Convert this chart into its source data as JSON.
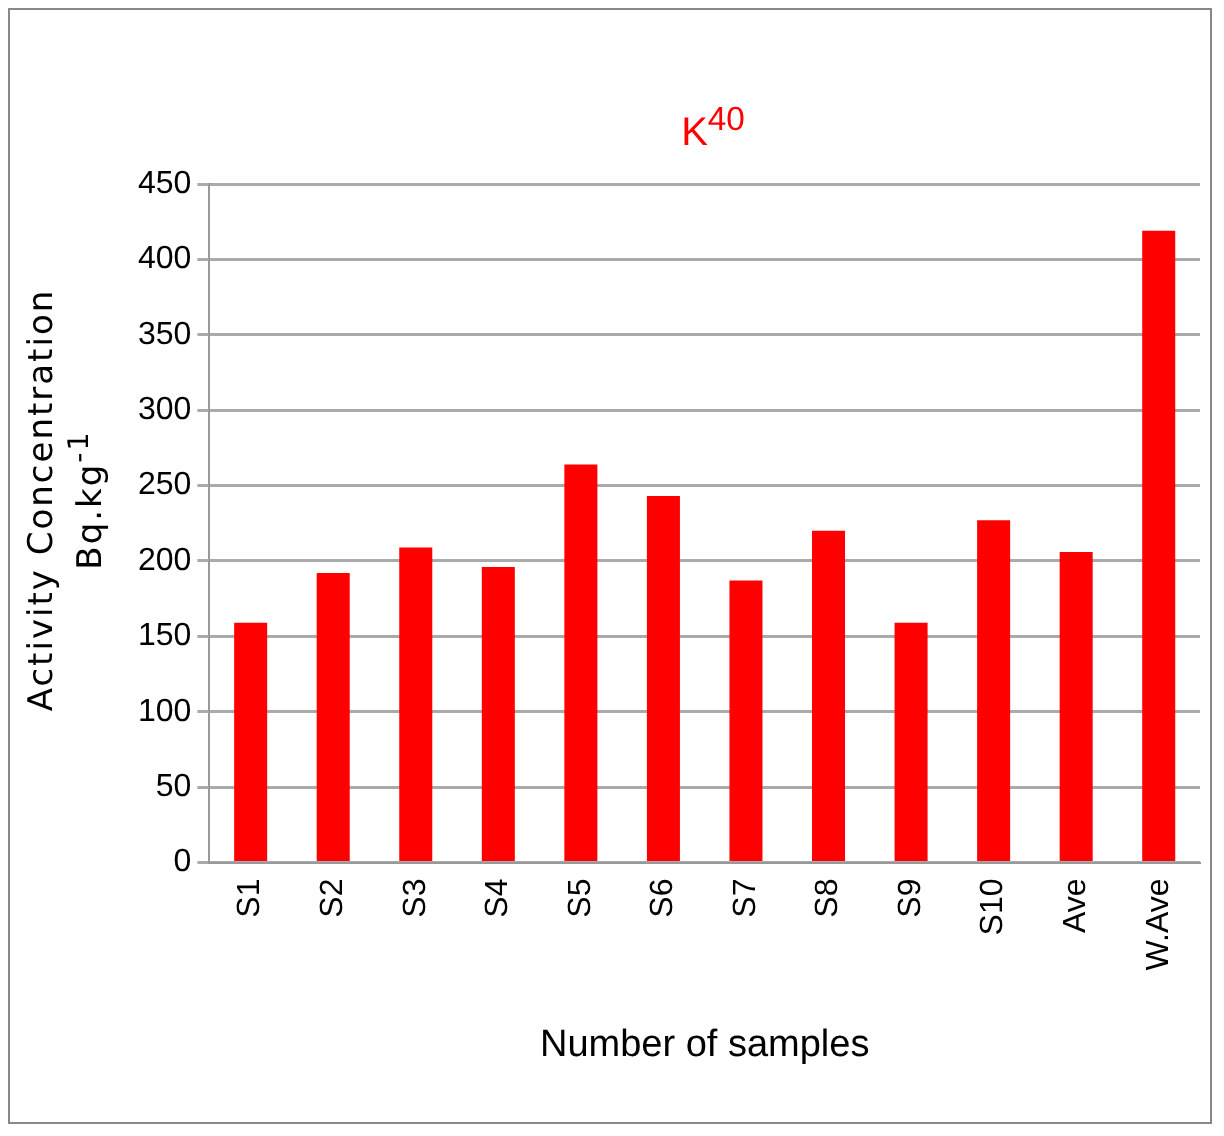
{
  "chart_data": {
    "type": "bar",
    "title": "K$^{40}$",
    "xlabel": "Number of samples",
    "ylabel": "Activity Concentration Bq.kg$^{-1}$",
    "categories": [
      "S1",
      "S2",
      "S3",
      "S4",
      "S5",
      "S6",
      "S7",
      "S8",
      "S9",
      "S10",
      "Ave",
      "W.Ave"
    ],
    "values": [
      159,
      192,
      209,
      196,
      264,
      243,
      187,
      220,
      159,
      227,
      206,
      419
    ],
    "color": "#ff0000",
    "ylim": [
      0,
      450
    ],
    "yticks": [
      0,
      50,
      100,
      150,
      200,
      250,
      300,
      350,
      400,
      450
    ],
    "grid": "y",
    "legend": false
  }
}
